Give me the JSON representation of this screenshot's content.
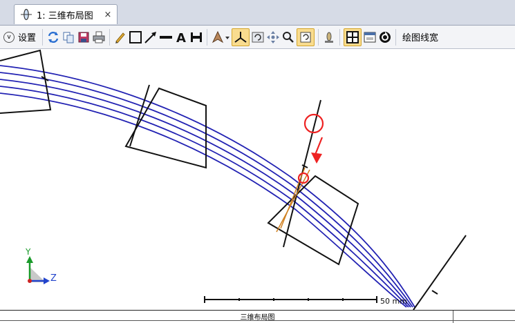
{
  "tab": {
    "label": "1: 三维布局图",
    "close": "×",
    "icon": "lens-icon"
  },
  "toolbar": {
    "settings_label": "设置",
    "line_width_label": "绘图线宽",
    "tools": [
      "refresh-icon",
      "copy-icon",
      "save-icon",
      "print-icon",
      "pencil-icon",
      "rectangle-icon",
      "arrow-line-icon",
      "line-icon",
      "text-icon",
      "dimension-icon",
      "view-orientation-icon",
      "axis-icon",
      "rotate-icon",
      "pan-icon",
      "zoom-icon",
      "reset-icon",
      "lens-shape-icon",
      "fit-icon",
      "window-icon",
      "sync-icon"
    ]
  },
  "canvas": {
    "scale_label": "50 mm",
    "axes": {
      "y": "Y",
      "z": "Z"
    },
    "colors": {
      "rays": "#2222b3",
      "elements": "#111111",
      "highlight": "#ee2222",
      "marker": "#d08020"
    }
  },
  "footer": {
    "title": "三维布局图"
  }
}
